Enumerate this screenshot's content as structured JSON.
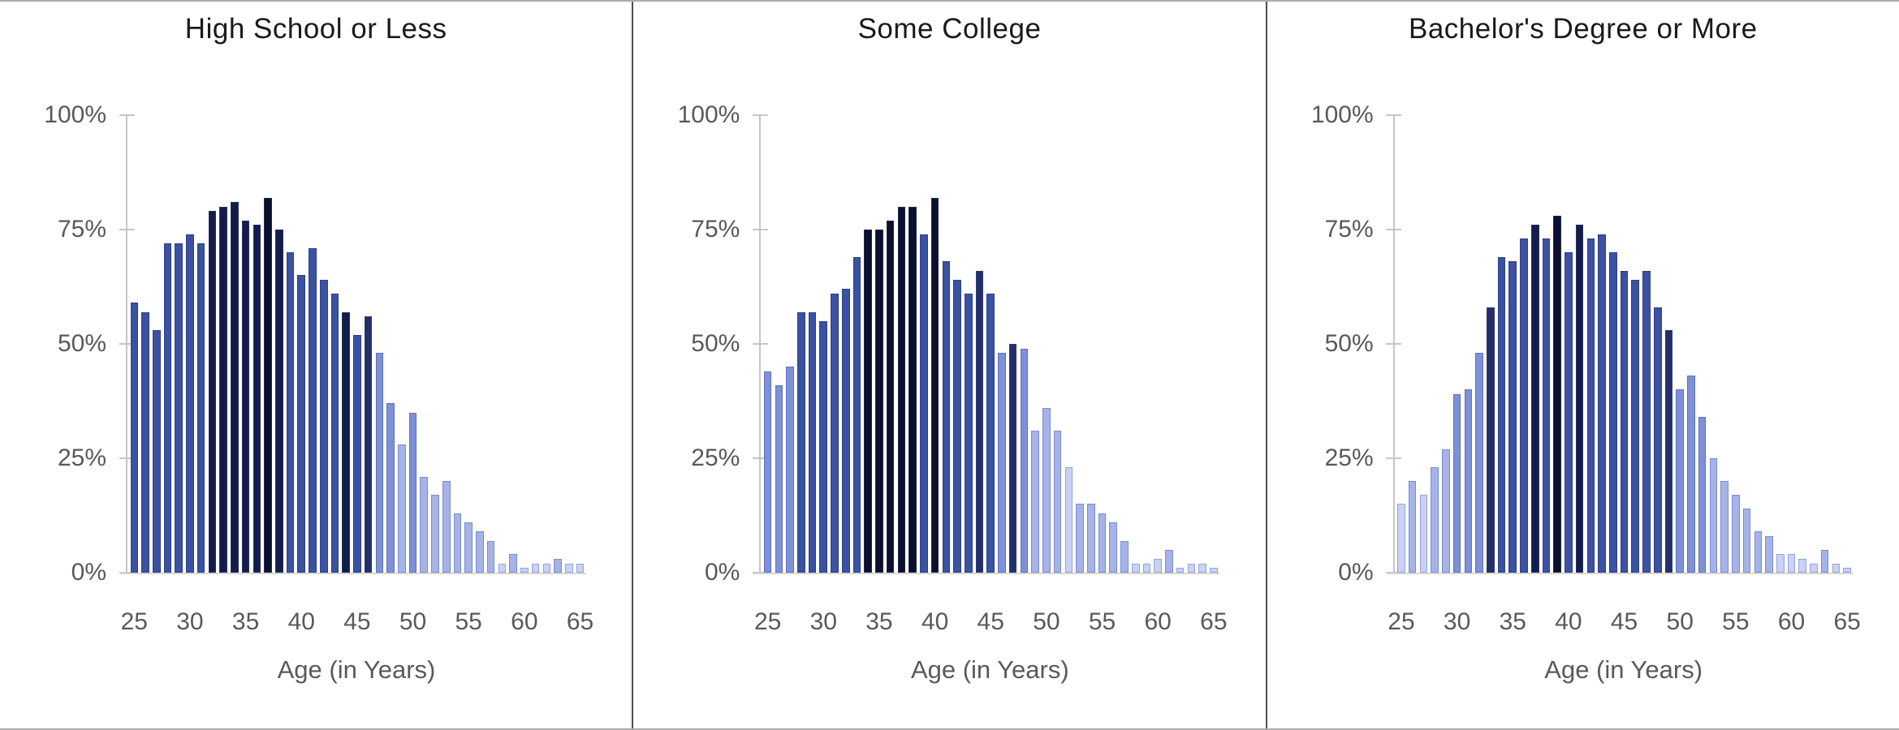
{
  "figure": {
    "background": "#FFFFFF",
    "frame_border_color": "#ABABAB",
    "panel_separator_color": "#4A544C"
  },
  "y_axis": {
    "tick_labels": [
      "100%",
      "75%",
      "50%",
      "25%",
      "0%"
    ],
    "tick_values": [
      100,
      75,
      50,
      25,
      0
    ],
    "text_color": "#595959",
    "axis_line_color": "#C6C6C6",
    "baseline_color": "#D6D6D6"
  },
  "x_axis": {
    "label": "Age (in Years)",
    "tick_ages": [
      25,
      30,
      35,
      40,
      45,
      50,
      55,
      60,
      65
    ],
    "text_color": "#595959"
  },
  "palette": {
    "fills": [
      "#0A102F",
      "#131C4D",
      "#232F6B",
      "#3B51A3",
      "#7E90D8",
      "#A6B3E8",
      "#C9D2F4"
    ],
    "borders": [
      "#232A47",
      "#28325A",
      "#2C3870",
      "#2E3F85",
      "#5D70BC",
      "#7A8BCF",
      "#93A2DE"
    ]
  },
  "chart_data": [
    {
      "type": "bar",
      "title": "High School or Less",
      "xlabel": "Age (in Years)",
      "ylabel": "",
      "ylim": [
        0,
        100
      ],
      "yticks": [
        "0%",
        "25%",
        "50%",
        "75%",
        "100%"
      ],
      "grid": false,
      "legend": false,
      "x": [
        25,
        26,
        27,
        28,
        29,
        30,
        31,
        32,
        33,
        34,
        35,
        36,
        37,
        38,
        39,
        40,
        41,
        42,
        43,
        44,
        45,
        46,
        47,
        48,
        49,
        50,
        51,
        52,
        53,
        54,
        55,
        56,
        57,
        58,
        59,
        60,
        61,
        62,
        63,
        64,
        65
      ],
      "values": [
        59,
        57,
        53,
        72,
        72,
        74,
        72,
        79,
        80,
        81,
        77,
        76,
        82,
        75,
        70,
        65,
        71,
        64,
        61,
        57,
        52,
        56,
        48,
        37,
        28,
        35,
        21,
        17,
        20,
        13,
        11,
        9,
        7,
        2,
        4,
        1,
        2,
        2,
        3,
        2,
        2
      ],
      "shades": [
        3,
        3,
        3,
        3,
        3,
        3,
        3,
        1,
        1,
        1,
        1,
        1,
        0,
        1,
        3,
        3,
        3,
        3,
        3,
        1,
        3,
        2,
        4,
        4,
        5,
        4,
        5,
        5,
        5,
        5,
        5,
        5,
        5,
        6,
        5,
        6,
        6,
        6,
        5,
        6,
        6
      ]
    },
    {
      "type": "bar",
      "title": "Some College",
      "xlabel": "Age (in Years)",
      "ylabel": "",
      "ylim": [
        0,
        100
      ],
      "yticks": [
        "0%",
        "25%",
        "50%",
        "75%",
        "100%"
      ],
      "grid": false,
      "legend": false,
      "x": [
        25,
        26,
        27,
        28,
        29,
        30,
        31,
        32,
        33,
        34,
        35,
        36,
        37,
        38,
        39,
        40,
        41,
        42,
        43,
        44,
        45,
        46,
        47,
        48,
        49,
        50,
        51,
        52,
        53,
        54,
        55,
        56,
        57,
        58,
        59,
        60,
        61,
        62,
        63,
        64,
        65
      ],
      "values": [
        44,
        41,
        45,
        57,
        57,
        55,
        61,
        62,
        69,
        75,
        75,
        77,
        80,
        80,
        74,
        82,
        68,
        64,
        61,
        66,
        61,
        48,
        50,
        49,
        31,
        36,
        31,
        23,
        15,
        15,
        13,
        11,
        7,
        2,
        2,
        3,
        5,
        1,
        2,
        2,
        1
      ],
      "shades": [
        4,
        4,
        4,
        3,
        3,
        3,
        3,
        3,
        3,
        0,
        0,
        0,
        0,
        0,
        3,
        0,
        3,
        3,
        3,
        2,
        3,
        4,
        2,
        4,
        5,
        5,
        5,
        6,
        5,
        5,
        5,
        5,
        5,
        6,
        6,
        6,
        5,
        6,
        6,
        6,
        6
      ]
    },
    {
      "type": "bar",
      "title": "Bachelor's Degree or More",
      "xlabel": "Age (in Years)",
      "ylabel": "",
      "ylim": [
        0,
        100
      ],
      "yticks": [
        "0%",
        "25%",
        "50%",
        "75%",
        "100%"
      ],
      "grid": false,
      "legend": false,
      "x": [
        25,
        26,
        27,
        28,
        29,
        30,
        31,
        32,
        33,
        34,
        35,
        36,
        37,
        38,
        39,
        40,
        41,
        42,
        43,
        44,
        45,
        46,
        47,
        48,
        49,
        50,
        51,
        52,
        53,
        54,
        55,
        56,
        57,
        58,
        59,
        60,
        61,
        62,
        63,
        64,
        65
      ],
      "values": [
        15,
        20,
        17,
        23,
        27,
        39,
        40,
        48,
        58,
        69,
        68,
        73,
        76,
        73,
        78,
        70,
        76,
        73,
        74,
        70,
        66,
        64,
        66,
        58,
        53,
        40,
        43,
        34,
        25,
        20,
        17,
        14,
        9,
        8,
        4,
        4,
        3,
        2,
        5,
        2,
        1
      ],
      "shades": [
        6,
        5,
        6,
        5,
        5,
        4,
        4,
        4,
        2,
        3,
        3,
        3,
        1,
        3,
        0,
        3,
        1,
        3,
        3,
        3,
        3,
        3,
        3,
        3,
        2,
        4,
        4,
        4,
        5,
        5,
        5,
        5,
        5,
        5,
        6,
        6,
        6,
        6,
        5,
        6,
        6
      ]
    }
  ]
}
